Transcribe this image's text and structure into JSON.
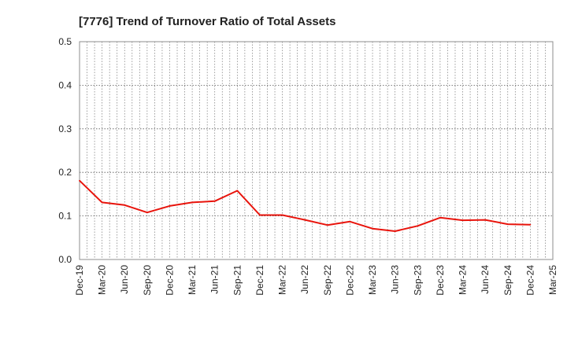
{
  "chart_data": {
    "type": "line",
    "title": "[7776]  Trend of Turnover Ratio of Total Assets",
    "xlabel": "",
    "ylabel": "",
    "ylim": [
      0,
      0.5
    ],
    "yticks": [
      "0.0",
      "0.1",
      "0.2",
      "0.3",
      "0.4",
      "0.5"
    ],
    "x_tick_labels": [
      "Dec-19",
      "Mar-20",
      "Jun-20",
      "Sep-20",
      "Dec-20",
      "Mar-21",
      "Jun-21",
      "Sep-21",
      "Dec-21",
      "Mar-22",
      "Jun-22",
      "Sep-22",
      "Dec-22",
      "Mar-23",
      "Jun-23",
      "Sep-23",
      "Dec-23",
      "Mar-24",
      "Jun-24",
      "Sep-24",
      "Dec-24",
      "Mar-25"
    ],
    "grid": true,
    "legend": "none",
    "series": [
      {
        "color": "#e8140c",
        "x": [
          "Dec-19",
          "Mar-20",
          "Jun-20",
          "Sep-20",
          "Dec-20",
          "Mar-21",
          "Jun-21",
          "Sep-21",
          "Dec-21",
          "Mar-22",
          "Jun-22",
          "Sep-22",
          "Dec-22",
          "Mar-23",
          "Jun-23",
          "Sep-23",
          "Dec-23",
          "Mar-24",
          "Jun-24",
          "Sep-24",
          "Dec-24"
        ],
        "values": [
          0.181,
          0.131,
          0.125,
          0.108,
          0.123,
          0.131,
          0.134,
          0.158,
          0.102,
          0.102,
          0.091,
          0.079,
          0.087,
          0.071,
          0.065,
          0.077,
          0.096,
          0.09,
          0.091,
          0.081,
          0.08
        ]
      }
    ]
  }
}
